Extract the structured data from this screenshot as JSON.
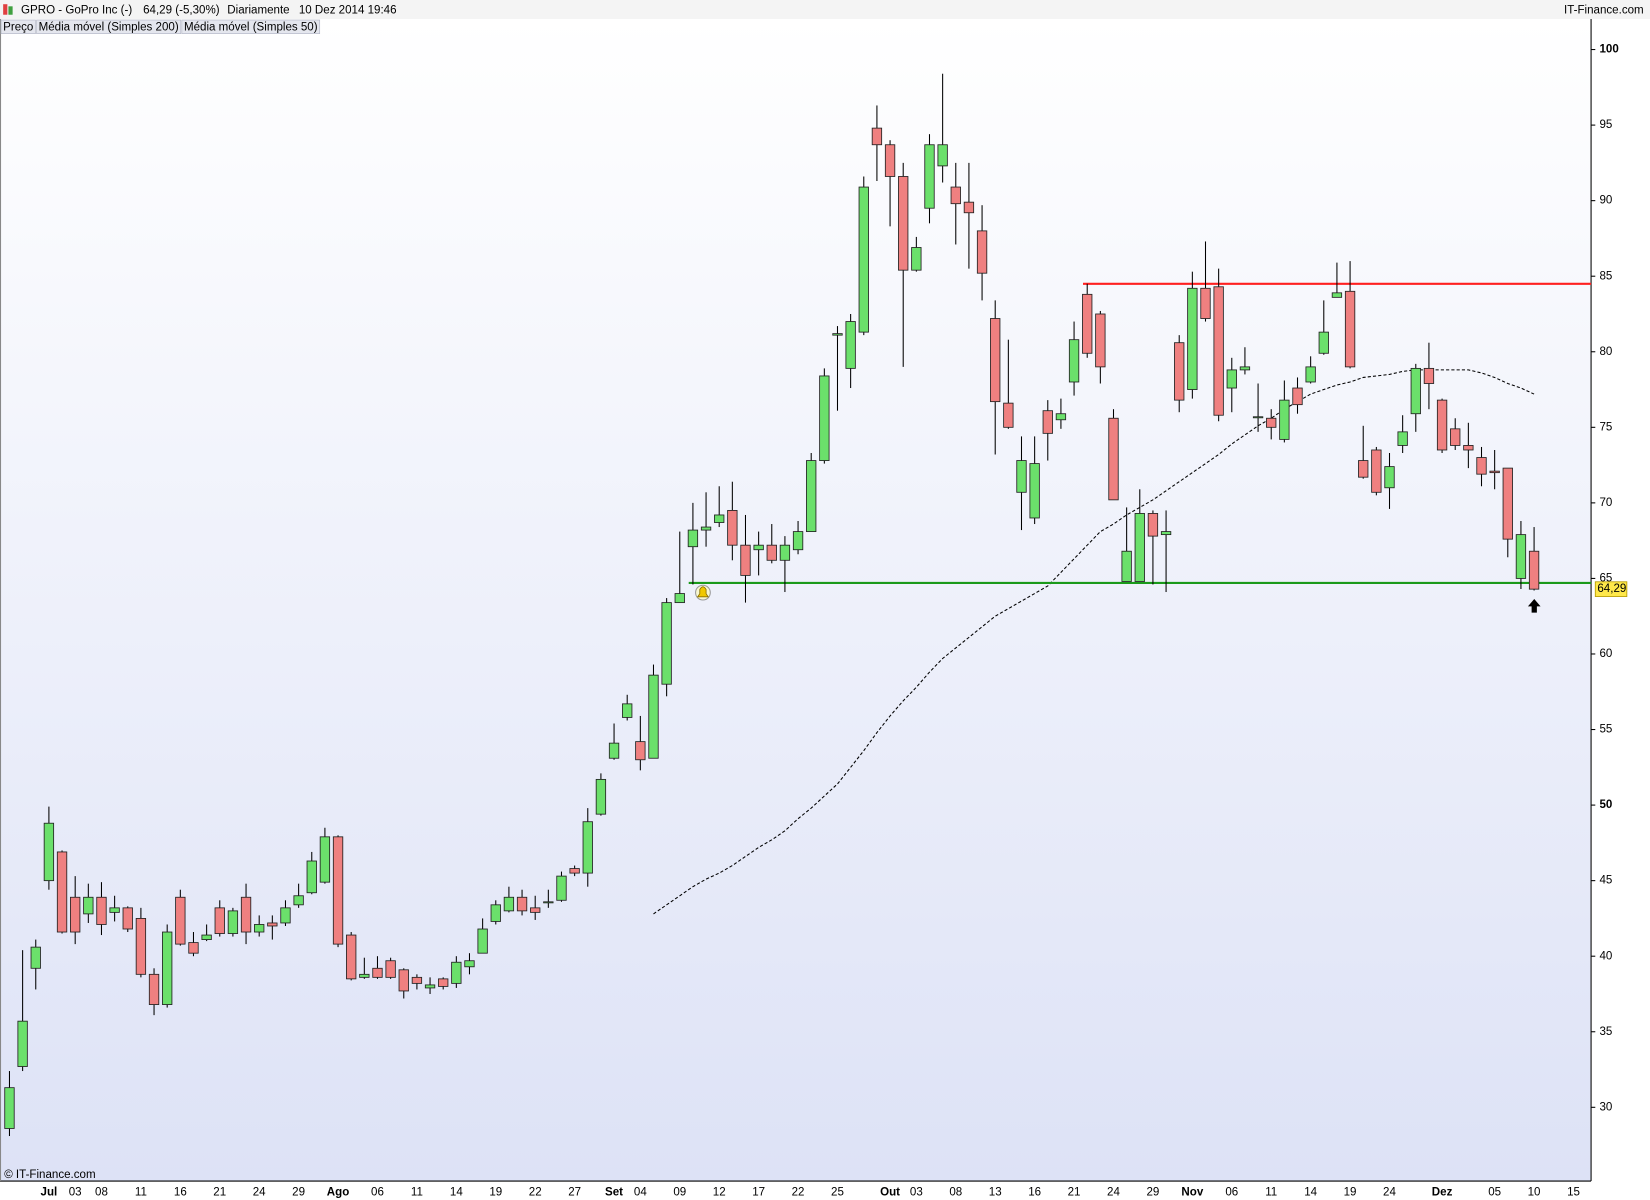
{
  "header": {
    "symbol": "GPRO - GoPro Inc (-)",
    "quote": "64,29 (-5,30%)",
    "period": "Diariamente",
    "datetime": "10 Dez 2014 19:46",
    "brand": "IT-Finance.com",
    "footer": "© IT-Finance.com"
  },
  "chart_data": {
    "type": "candlestick",
    "legend": [
      {
        "name": "Preço",
        "color": "#000000"
      },
      {
        "name": "Média móvel (Simples 200)",
        "color": "#e00000"
      },
      {
        "name": "Média móvel (Simples 50)",
        "color": "#000000"
      }
    ],
    "categories": [
      null,
      null,
      null,
      "Jul",
      null,
      "03",
      null,
      "08",
      null,
      null,
      "11",
      null,
      null,
      "16",
      null,
      null,
      "21",
      null,
      null,
      "24",
      null,
      null,
      "29",
      null,
      null,
      "Ago",
      null,
      null,
      "06",
      null,
      null,
      "11",
      null,
      null,
      "14",
      null,
      null,
      "19",
      null,
      null,
      "22",
      null,
      null,
      "27",
      null,
      null,
      "Set",
      null,
      "04",
      null,
      null,
      "09",
      null,
      null,
      "12",
      null,
      null,
      "17",
      null,
      null,
      "22",
      null,
      null,
      "25",
      null,
      null,
      null,
      "Out",
      null,
      "03",
      null,
      null,
      "08",
      null,
      null,
      "13",
      null,
      null,
      "16",
      null,
      null,
      "21",
      null,
      null,
      "24",
      null,
      null,
      "29",
      null,
      null,
      "Nov",
      null,
      null,
      "06",
      null,
      null,
      "11",
      null,
      null,
      "14",
      null,
      null,
      "19",
      null,
      null,
      "24",
      null,
      null,
      null,
      "Dez",
      null,
      null,
      null,
      "05",
      null,
      null,
      "10",
      null,
      null,
      "15"
    ],
    "open": [
      28.6,
      32.7,
      39.2,
      45.0,
      46.9,
      43.9,
      42.8,
      43.9,
      42.9,
      43.2,
      42.5,
      38.8,
      36.8,
      43.9,
      40.9,
      41.1,
      43.2,
      41.5,
      43.9,
      41.6,
      42.2,
      42.2,
      43.4,
      44.2,
      44.9,
      47.9,
      41.4,
      38.6,
      39.2,
      39.7,
      39.1,
      38.6,
      37.9,
      38.5,
      38.2,
      39.3,
      40.2,
      42.3,
      43.0,
      43.9,
      43.2,
      43.6,
      43.7,
      45.8,
      45.5,
      49.4,
      53.1,
      55.8,
      54.2,
      53.1,
      58.0,
      63.4,
      67.1,
      68.2,
      68.7,
      69.5,
      67.2,
      66.9,
      67.2,
      66.2,
      66.9,
      68.1,
      72.8,
      81.1,
      78.9,
      81.3,
      94.8,
      93.7,
      91.6,
      85.4,
      89.5,
      92.3,
      90.9,
      89.9,
      88.0,
      82.2,
      76.6,
      70.7,
      69.0,
      76.1,
      75.5,
      78.0,
      83.8,
      82.5,
      75.6,
      64.8,
      64.8,
      69.3,
      67.9,
      80.6,
      77.5,
      84.2,
      84.3,
      77.6,
      78.8,
      75.7,
      75.6,
      74.2,
      77.6,
      78.0,
      79.9,
      83.6,
      84.0,
      72.8,
      73.5,
      71.0,
      73.8,
      75.9,
      78.9,
      76.8,
      74.9,
      73.8,
      73.0,
      72.1,
      72.3,
      65.0,
      66.8,
      null,
      null,
      null
    ],
    "high": [
      32.4,
      40.4,
      41.1,
      49.9,
      47.0,
      45.3,
      44.8,
      44.9,
      44.0,
      43.3,
      43.2,
      39.2,
      42.1,
      44.4,
      41.6,
      42.1,
      43.7,
      43.2,
      44.8,
      42.7,
      42.7,
      43.7,
      44.8,
      46.9,
      48.5,
      48.0,
      41.6,
      39.9,
      40.0,
      39.9,
      39.2,
      38.8,
      38.6,
      38.6,
      40.0,
      40.2,
      42.5,
      43.7,
      44.6,
      44.4,
      44.0,
      44.4,
      45.6,
      46.0,
      49.8,
      52.1,
      55.4,
      57.3,
      55.9,
      59.3,
      63.7,
      68.1,
      70.0,
      70.7,
      71.1,
      71.4,
      69.2,
      68.1,
      68.6,
      67.8,
      68.8,
      73.3,
      78.9,
      81.7,
      82.5,
      91.6,
      96.3,
      94.0,
      92.5,
      87.6,
      94.4,
      98.4,
      92.5,
      92.5,
      89.7,
      83.4,
      80.8,
      74.4,
      74.4,
      76.8,
      76.9,
      82.0,
      84.5,
      82.7,
      76.2,
      69.7,
      70.9,
      69.5,
      69.5,
      81.1,
      85.3,
      87.3,
      85.5,
      79.6,
      80.3,
      77.9,
      76.2,
      78.1,
      78.3,
      79.7,
      83.4,
      85.9,
      86.0,
      75.1,
      73.7,
      73.3,
      75.8,
      79.2,
      80.6,
      76.9,
      75.6,
      75.3,
      73.7,
      73.5,
      72.3,
      68.8,
      68.4,
      null,
      null,
      null
    ],
    "low": [
      28.1,
      32.4,
      37.8,
      44.4,
      41.5,
      40.8,
      42.2,
      41.4,
      42.3,
      41.6,
      38.6,
      36.1,
      36.6,
      40.7,
      40.0,
      41.0,
      41.3,
      41.3,
      40.8,
      41.3,
      41.1,
      42.0,
      43.2,
      44.1,
      44.8,
      40.6,
      38.4,
      38.5,
      38.5,
      38.5,
      37.2,
      37.8,
      37.5,
      37.8,
      37.9,
      38.8,
      40.2,
      42.1,
      42.9,
      42.7,
      42.4,
      43.2,
      43.6,
      45.3,
      44.6,
      49.3,
      53.0,
      55.6,
      52.3,
      53.1,
      57.2,
      63.4,
      64.6,
      67.1,
      68.4,
      66.2,
      63.4,
      65.2,
      66.0,
      64.1,
      66.6,
      68.1,
      72.6,
      76.1,
      77.6,
      81.1,
      91.3,
      88.3,
      79.0,
      85.3,
      88.5,
      91.2,
      87.1,
      85.5,
      83.4,
      73.2,
      74.9,
      68.2,
      68.6,
      72.8,
      74.9,
      77.1,
      79.6,
      77.9,
      70.2,
      64.8,
      64.8,
      64.6,
      64.1,
      76.0,
      76.9,
      82.0,
      75.4,
      76.0,
      78.5,
      74.7,
      74.2,
      74.0,
      75.9,
      77.9,
      79.8,
      83.6,
      78.9,
      71.6,
      70.5,
      69.6,
      73.3,
      74.7,
      76.2,
      73.3,
      73.5,
      72.3,
      71.1,
      70.9,
      66.4,
      64.3,
      64.2,
      null,
      null,
      null
    ],
    "close": [
      31.3,
      35.7,
      40.6,
      48.8,
      41.6,
      41.6,
      43.9,
      42.1,
      43.2,
      41.8,
      38.8,
      36.8,
      41.6,
      40.8,
      40.2,
      41.4,
      41.5,
      43.0,
      41.6,
      42.1,
      42.0,
      43.2,
      44.0,
      46.3,
      47.9,
      40.8,
      38.5,
      38.8,
      38.6,
      38.6,
      37.7,
      38.2,
      38.1,
      38.0,
      39.6,
      39.7,
      41.8,
      43.4,
      43.9,
      43.0,
      42.9,
      43.6,
      45.3,
      45.5,
      48.9,
      51.7,
      54.1,
      56.7,
      53.0,
      58.6,
      63.4,
      64.0,
      68.2,
      68.4,
      69.2,
      67.2,
      65.2,
      67.2,
      66.2,
      67.2,
      68.1,
      72.8,
      78.4,
      81.2,
      82.0,
      90.9,
      93.7,
      91.6,
      85.4,
      86.9,
      93.7,
      93.7,
      89.8,
      89.2,
      85.2,
      76.7,
      75.0,
      72.8,
      72.6,
      74.6,
      75.9,
      80.8,
      79.9,
      79.0,
      70.2,
      66.8,
      69.3,
      67.8,
      68.1,
      76.8,
      84.2,
      82.2,
      75.8,
      78.8,
      79.0,
      75.7,
      75.0,
      76.8,
      76.5,
      79.0,
      81.3,
      83.9,
      79.0,
      71.7,
      70.7,
      72.4,
      74.7,
      78.9,
      77.9,
      73.5,
      73.8,
      73.5,
      71.9,
      72.0,
      67.6,
      67.9,
      64.29,
      null,
      null,
      null
    ],
    "up_color": "#6be06b",
    "down_color": "#ef8080",
    "ma": {
      "color": "#000000",
      "values": [
        null,
        null,
        null,
        null,
        null,
        null,
        null,
        null,
        null,
        null,
        null,
        null,
        null,
        null,
        null,
        null,
        null,
        null,
        null,
        null,
        null,
        null,
        null,
        null,
        null,
        null,
        null,
        null,
        null,
        null,
        null,
        null,
        null,
        null,
        null,
        null,
        null,
        null,
        null,
        null,
        null,
        null,
        null,
        null,
        null,
        null,
        null,
        null,
        null,
        42.8,
        43.4,
        44.0,
        44.6,
        45.1,
        45.5,
        46.0,
        46.6,
        47.2,
        47.7,
        48.3,
        49.1,
        49.8,
        50.6,
        51.4,
        52.5,
        53.6,
        54.8,
        55.9,
        56.9,
        57.8,
        58.8,
        59.7,
        60.4,
        61.1,
        61.8,
        62.5,
        63.0,
        63.5,
        64.0,
        64.5,
        65.4,
        66.3,
        67.2,
        68.1,
        68.6,
        69.2,
        69.7,
        70.2,
        70.8,
        71.4,
        72.0,
        72.6,
        73.2,
        73.9,
        74.5,
        75.1,
        75.6,
        76.2,
        76.7,
        77.2,
        77.5,
        77.8,
        78.0,
        78.3,
        78.4,
        78.5,
        78.7,
        78.8,
        78.8,
        78.8,
        78.8,
        78.8,
        78.6,
        78.3,
        77.9,
        77.6,
        77.2,
        null,
        null,
        null
      ]
    },
    "levels": [
      {
        "value": 84.5,
        "color": "#ff2020",
        "from": 82
      },
      {
        "value": 64.7,
        "color": "#1a9a1a",
        "from": 52
      }
    ],
    "last": {
      "value": 64.29,
      "label": "64,29"
    },
    "ylim": [
      25.12,
      100.98
    ],
    "yticks": [
      30,
      35,
      40,
      45,
      50,
      55,
      60,
      65,
      70,
      75,
      80,
      85,
      90,
      95,
      100
    ],
    "grid": false
  }
}
